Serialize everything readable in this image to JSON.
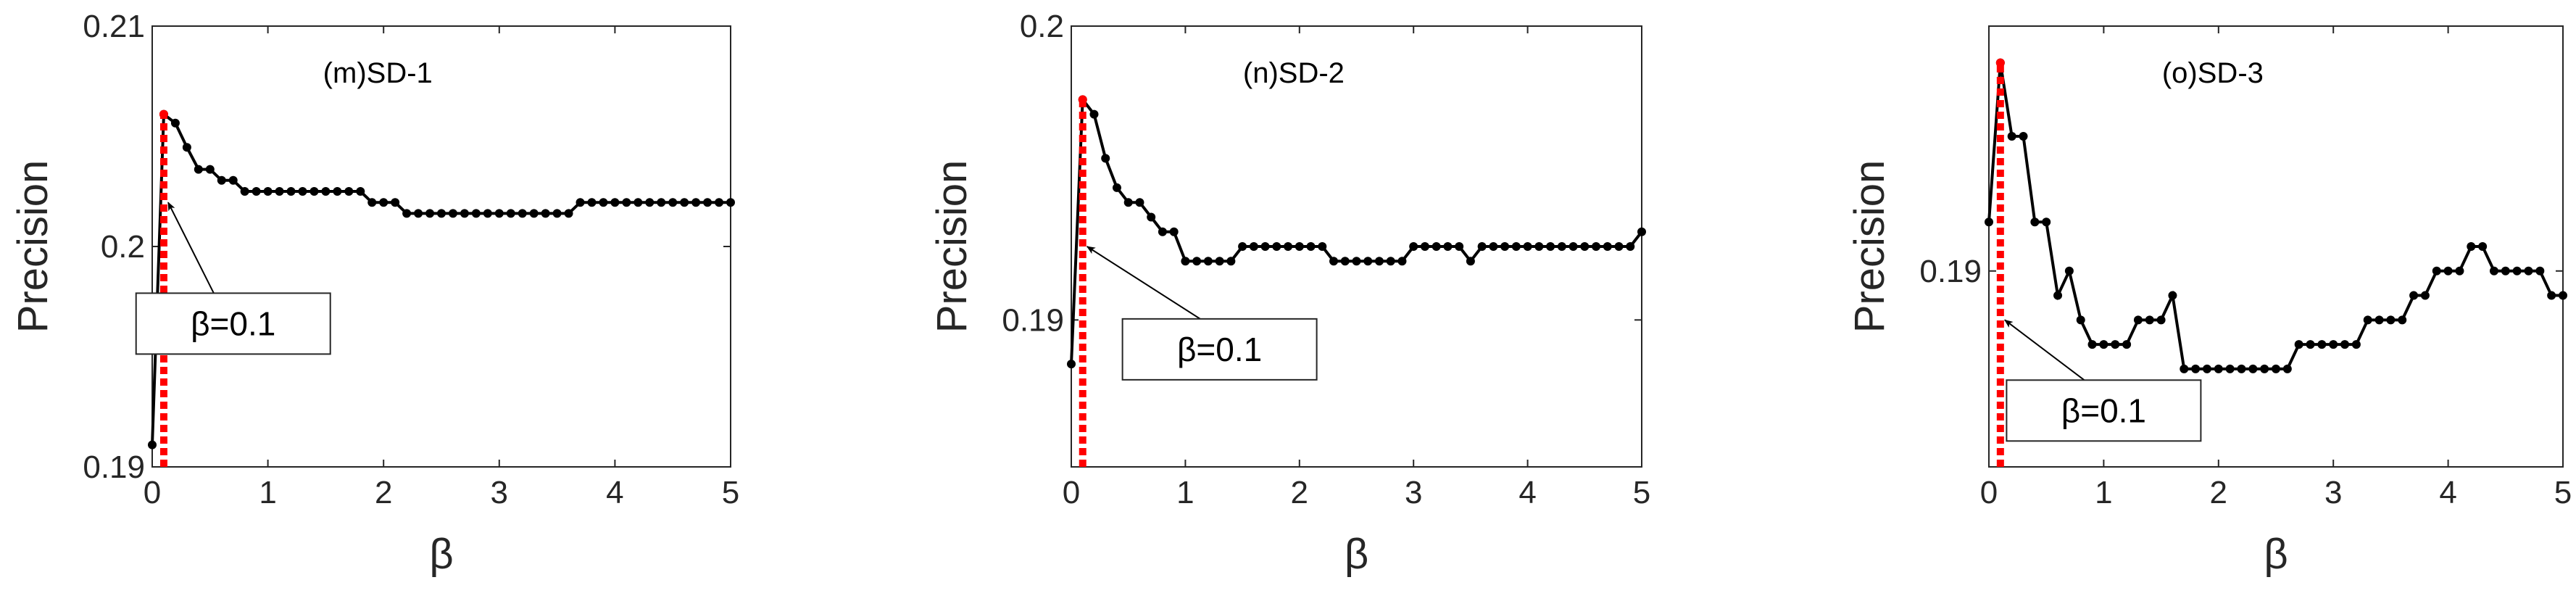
{
  "chart_data": [
    {
      "type": "line",
      "title": "(m)SD-1",
      "xlabel": "β",
      "ylabel": "Precision",
      "xlim": [
        0,
        5
      ],
      "ylim": [
        0.19,
        0.21
      ],
      "xticks": [
        0,
        1,
        2,
        3,
        4,
        5
      ],
      "yticks": [
        0.19,
        0.2,
        0.21
      ],
      "xtick_labels": [
        "0",
        "1",
        "2",
        "3",
        "4",
        "5"
      ],
      "ytick_labels": [
        "0.19",
        "0.2",
        "0.21"
      ],
      "grid": false,
      "series": [
        {
          "color": "#000000",
          "x": [
            0,
            0.1,
            0.2,
            0.3,
            0.4,
            0.5,
            0.6,
            0.7,
            0.8,
            0.9,
            1.0,
            1.1,
            1.2,
            1.3,
            1.4,
            1.5,
            1.6,
            1.7,
            1.8,
            1.9,
            2.0,
            2.1,
            2.2,
            2.3,
            2.4,
            2.5,
            2.6,
            2.7,
            2.8,
            2.9,
            3.0,
            3.1,
            3.2,
            3.3,
            3.4,
            3.5,
            3.6,
            3.7,
            3.8,
            3.9,
            4.0,
            4.1,
            4.2,
            4.3,
            4.4,
            4.5,
            4.6,
            4.7,
            4.8,
            4.9,
            5.0
          ],
          "y": [
            0.191,
            0.206,
            0.2056,
            0.2045,
            0.2035,
            0.2035,
            0.203,
            0.203,
            0.2025,
            0.2025,
            0.2025,
            0.2025,
            0.2025,
            0.2025,
            0.2025,
            0.2025,
            0.2025,
            0.2025,
            0.2025,
            0.202,
            0.202,
            0.202,
            0.2015,
            0.2015,
            0.2015,
            0.2015,
            0.2015,
            0.2015,
            0.2015,
            0.2015,
            0.2015,
            0.2015,
            0.2015,
            0.2015,
            0.2015,
            0.2015,
            0.2015,
            0.202,
            0.202,
            0.202,
            0.202,
            0.202,
            0.202,
            0.202,
            0.202,
            0.202,
            0.202,
            0.202,
            0.202,
            0.202,
            0.202
          ]
        }
      ],
      "highlight": {
        "x": 0.1,
        "color": "#ff0000",
        "style": "dotted"
      },
      "annotation": {
        "text": "β=0.1",
        "x": 0.1,
        "y": 0.202,
        "label_x": 0.7,
        "label_y": 0.1965
      }
    },
    {
      "type": "line",
      "title": "(n)SD-2",
      "xlabel": "β",
      "ylabel": "Precision",
      "xlim": [
        0,
        5
      ],
      "ylim": [
        0.185,
        0.2
      ],
      "xticks": [
        0,
        1,
        2,
        3,
        4,
        5
      ],
      "yticks": [
        0.19,
        0.2
      ],
      "xtick_labels": [
        "0",
        "1",
        "2",
        "3",
        "4",
        "5"
      ],
      "ytick_labels": [
        "0.19",
        "0.2"
      ],
      "grid": false,
      "series": [
        {
          "color": "#000000",
          "x": [
            0,
            0.1,
            0.2,
            0.3,
            0.4,
            0.5,
            0.6,
            0.7,
            0.8,
            0.9,
            1.0,
            1.1,
            1.2,
            1.3,
            1.4,
            1.5,
            1.6,
            1.7,
            1.8,
            1.9,
            2.0,
            2.1,
            2.2,
            2.3,
            2.4,
            2.5,
            2.6,
            2.7,
            2.8,
            2.9,
            3.0,
            3.1,
            3.2,
            3.3,
            3.4,
            3.5,
            3.6,
            3.7,
            3.8,
            3.9,
            4.0,
            4.1,
            4.2,
            4.3,
            4.4,
            4.5,
            4.6,
            4.7,
            4.8,
            4.9,
            5.0
          ],
          "y": [
            0.1885,
            0.1975,
            0.197,
            0.1955,
            0.1945,
            0.194,
            0.194,
            0.1935,
            0.193,
            0.193,
            0.192,
            0.192,
            0.192,
            0.192,
            0.192,
            0.1925,
            0.1925,
            0.1925,
            0.1925,
            0.1925,
            0.1925,
            0.1925,
            0.1925,
            0.192,
            0.192,
            0.192,
            0.192,
            0.192,
            0.192,
            0.192,
            0.1925,
            0.1925,
            0.1925,
            0.1925,
            0.1925,
            0.192,
            0.1925,
            0.1925,
            0.1925,
            0.1925,
            0.1925,
            0.1925,
            0.1925,
            0.1925,
            0.1925,
            0.1925,
            0.1925,
            0.1925,
            0.1925,
            0.1925,
            0.193
          ]
        }
      ],
      "highlight": {
        "x": 0.1,
        "color": "#ff0000",
        "style": "dotted"
      },
      "annotation": {
        "text": "β=0.1",
        "x": 0.1,
        "y": 0.1925,
        "label_x": 1.3,
        "label_y": 0.189
      }
    },
    {
      "type": "line",
      "title": "(o)SD-3",
      "xlabel": "β",
      "ylabel": "Precision",
      "xlim": [
        0,
        5
      ],
      "ylim": [
        0.182,
        0.2
      ],
      "xticks": [
        0,
        1,
        2,
        3,
        4,
        5
      ],
      "yticks": [
        0.19
      ],
      "xtick_labels": [
        "0",
        "1",
        "2",
        "3",
        "4",
        "5"
      ],
      "ytick_labels": [
        "0.19"
      ],
      "grid": false,
      "series": [
        {
          "color": "#000000",
          "x": [
            0,
            0.1,
            0.2,
            0.3,
            0.4,
            0.5,
            0.6,
            0.7,
            0.8,
            0.9,
            1.0,
            1.1,
            1.2,
            1.3,
            1.4,
            1.5,
            1.6,
            1.7,
            1.8,
            1.9,
            2.0,
            2.1,
            2.2,
            2.3,
            2.4,
            2.5,
            2.6,
            2.7,
            2.8,
            2.9,
            3.0,
            3.1,
            3.2,
            3.3,
            3.4,
            3.5,
            3.6,
            3.7,
            3.8,
            3.9,
            4.0,
            4.1,
            4.2,
            4.3,
            4.4,
            4.5,
            4.6,
            4.7,
            4.8,
            4.9,
            5.0
          ],
          "y": [
            0.192,
            0.1985,
            0.1955,
            0.1955,
            0.192,
            0.192,
            0.189,
            0.19,
            0.188,
            0.187,
            0.187,
            0.187,
            0.187,
            0.188,
            0.188,
            0.188,
            0.189,
            0.186,
            0.186,
            0.186,
            0.186,
            0.186,
            0.186,
            0.186,
            0.186,
            0.186,
            0.186,
            0.187,
            0.187,
            0.187,
            0.187,
            0.187,
            0.187,
            0.188,
            0.188,
            0.188,
            0.188,
            0.189,
            0.189,
            0.19,
            0.19,
            0.19,
            0.191,
            0.191,
            0.19,
            0.19,
            0.19,
            0.19,
            0.19,
            0.189,
            0.189
          ]
        }
      ],
      "highlight": {
        "x": 0.1,
        "color": "#ff0000",
        "style": "dotted"
      },
      "annotation": {
        "text": "β=0.1",
        "x": 0.1,
        "y": 0.188,
        "label_x": 1.0,
        "label_y": 0.1843
      }
    }
  ]
}
